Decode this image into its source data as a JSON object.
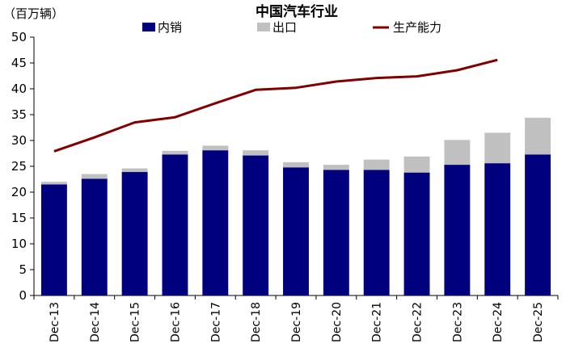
{
  "chart_data": {
    "type": "bar",
    "title": "中国汽车行业",
    "ylabel": "（百万辆）",
    "ylim": [
      0,
      50
    ],
    "yticks": [
      "0",
      "5",
      "10",
      "15",
      "20",
      "25",
      "30",
      "35",
      "40",
      "45",
      "50"
    ],
    "grid": false,
    "legend_position": "top",
    "categories": [
      "Dec-13",
      "Dec-14",
      "Dec-15",
      "Dec-16",
      "Dec-17",
      "Dec-18",
      "Dec-19",
      "Dec-20",
      "Dec-21",
      "Dec-22",
      "Dec-23",
      "Dec-24",
      "Dec-25"
    ],
    "series": [
      {
        "name": "内销",
        "type": "bar",
        "stack": "sales",
        "color": "#00007f",
        "values": [
          21.5,
          22.6,
          23.9,
          27.3,
          28.1,
          27.1,
          24.8,
          24.3,
          24.3,
          23.8,
          25.3,
          25.6,
          27.3
        ]
      },
      {
        "name": "出口",
        "type": "bar",
        "stack": "sales",
        "color": "#c0c0c0",
        "values": [
          0.5,
          0.9,
          0.7,
          0.7,
          0.9,
          1.0,
          1.0,
          1.0,
          2.0,
          3.1,
          4.8,
          5.9,
          7.1
        ]
      },
      {
        "name": "生产能力",
        "type": "line",
        "color": "#800000",
        "values": [
          27.9,
          30.6,
          33.5,
          34.5,
          37.2,
          39.8,
          40.2,
          41.4,
          42.1,
          42.4,
          43.6,
          45.6,
          null
        ]
      }
    ]
  }
}
